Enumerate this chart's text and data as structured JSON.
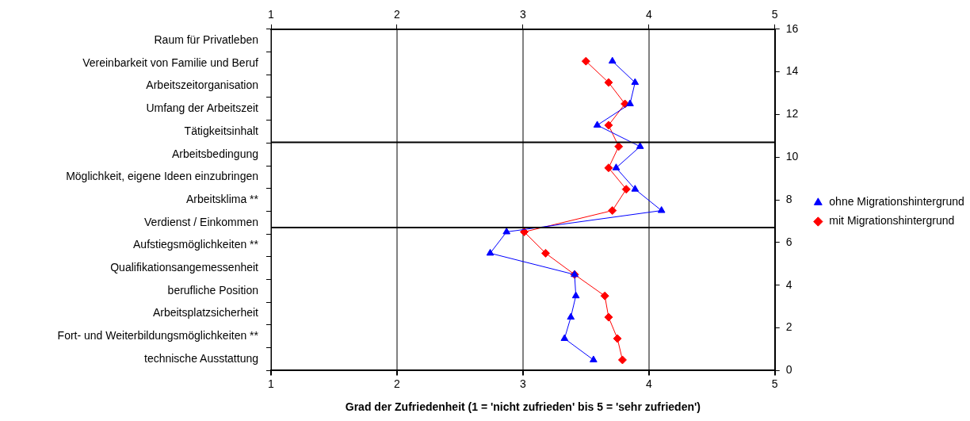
{
  "chart_data": {
    "type": "line",
    "xlabel": "Grad der Zufriedenheit (1 = 'nicht zufrieden' bis 5 = 'sehr zufrieden')",
    "y_categories": [
      "Raum für Privatleben",
      "Vereinbarkeit von Familie und Beruf",
      "Arbeitszeitorganisation",
      "Umfang der Arbeitszeit",
      "Tätigkeitsinhalt",
      "Arbeitsbedingung",
      "Möglichkeit, eigene Ideen einzubringen",
      "Arbeitsklima **",
      "Verdienst / Einkommen",
      "Aufstiegsmöglichkeiten **",
      "Qualifikationsangemessenheit",
      "berufliche Position",
      "Arbeitsplatzsicherheit",
      "Fort- und Weiterbildungsmöglichkeiten **",
      "technische Ausstattung"
    ],
    "series": [
      {
        "name": "ohne Migrationshintergrund",
        "color": "#0000ff",
        "marker": "triangle",
        "x": [
          3.71,
          3.89,
          3.85,
          3.59,
          3.93,
          3.74,
          3.89,
          4.1,
          2.87,
          2.74,
          3.41,
          3.42,
          3.38,
          3.33,
          3.56
        ],
        "values": [
          14.5,
          13.5,
          12.5,
          11.5,
          10.5,
          9.5,
          8.5,
          7.5,
          6.5,
          5.5,
          4.5,
          3.5,
          2.5,
          1.5,
          0.5
        ]
      },
      {
        "name": "mit Migrationshintergrund",
        "color": "#ff0000",
        "marker": "diamond",
        "x": [
          3.5,
          3.68,
          3.81,
          3.68,
          3.76,
          3.68,
          3.82,
          3.71,
          3.01,
          3.18,
          3.41,
          3.65,
          3.68,
          3.75,
          3.79
        ],
        "values": [
          14.5,
          13.5,
          12.5,
          11.5,
          10.5,
          9.5,
          8.5,
          7.5,
          6.5,
          5.5,
          4.5,
          3.5,
          2.5,
          1.5,
          0.5
        ]
      }
    ],
    "xlim": [
      1,
      5
    ],
    "xticks": [
      1,
      2,
      3,
      4,
      5
    ],
    "x2lim": [
      1,
      5
    ],
    "x2ticks": [
      1,
      2,
      3,
      4,
      5
    ],
    "ylim": [
      0,
      16
    ],
    "yticks": [
      0,
      2,
      4,
      6,
      8,
      10,
      12,
      14,
      16
    ],
    "ref_lines": [
      {
        "axis": "y",
        "value": 10.7,
        "color": "#000000"
      },
      {
        "axis": "y",
        "value": 6.7,
        "color": "#000000"
      }
    ],
    "grid": "x",
    "line_style": "solid",
    "legend": "right"
  }
}
